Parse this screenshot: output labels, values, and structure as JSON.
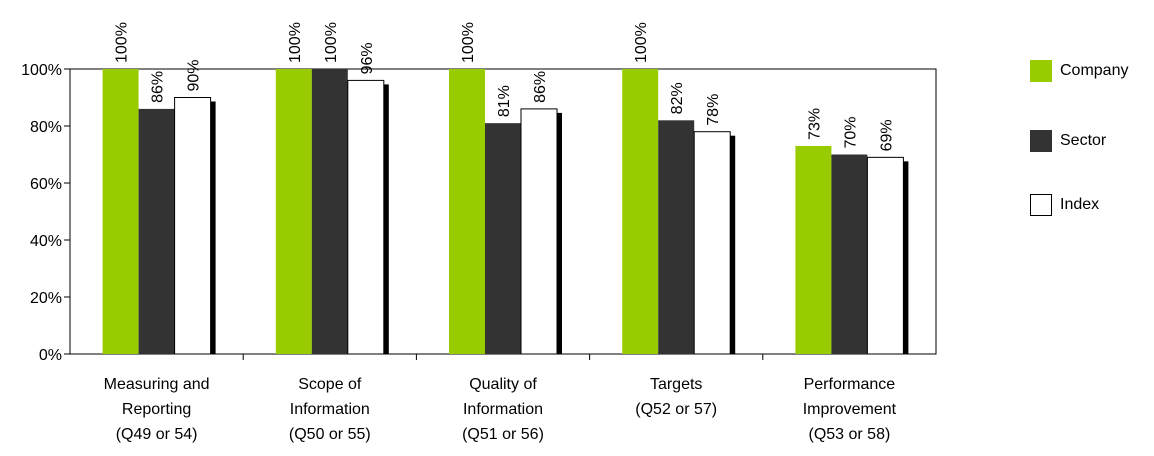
{
  "chart_data": {
    "type": "bar",
    "title": "",
    "xlabel": "",
    "ylabel": "",
    "ylim": [
      0,
      100
    ],
    "y_ticks": [
      "0%",
      "20%",
      "40%",
      "60%",
      "80%",
      "100%"
    ],
    "grid": false,
    "legend_position": "right",
    "categories": [
      [
        "Measuring and",
        "Reporting",
        "(Q49 or 54)"
      ],
      [
        "Scope of",
        "Information",
        "(Q50 or 55)"
      ],
      [
        "Quality of",
        "Information",
        "(Q51 or 56)"
      ],
      [
        "Targets",
        "(Q52 or 57)"
      ],
      [
        "Performance",
        "Improvement",
        "(Q53 or 58)"
      ]
    ],
    "series": [
      {
        "name": "Company",
        "color": "#99cc00",
        "values": [
          100,
          100,
          100,
          100,
          73
        ],
        "labels": [
          "100%",
          "100%",
          "100%",
          "100%",
          "73%"
        ]
      },
      {
        "name": "Sector",
        "color": "#333333",
        "values": [
          86,
          100,
          81,
          82,
          70
        ],
        "labels": [
          "86%",
          "100%",
          "81%",
          "82%",
          "70%"
        ]
      },
      {
        "name": "Index",
        "color": "#ffffff",
        "values": [
          90,
          96,
          86,
          78,
          69
        ],
        "labels": [
          "90%",
          "96%",
          "86%",
          "78%",
          "69%"
        ]
      }
    ]
  },
  "legend": {
    "items": [
      {
        "label": "Company",
        "color": "#99cc00"
      },
      {
        "label": "Sector",
        "color": "#333333"
      },
      {
        "label": "Index",
        "color": "#ffffff"
      }
    ]
  }
}
